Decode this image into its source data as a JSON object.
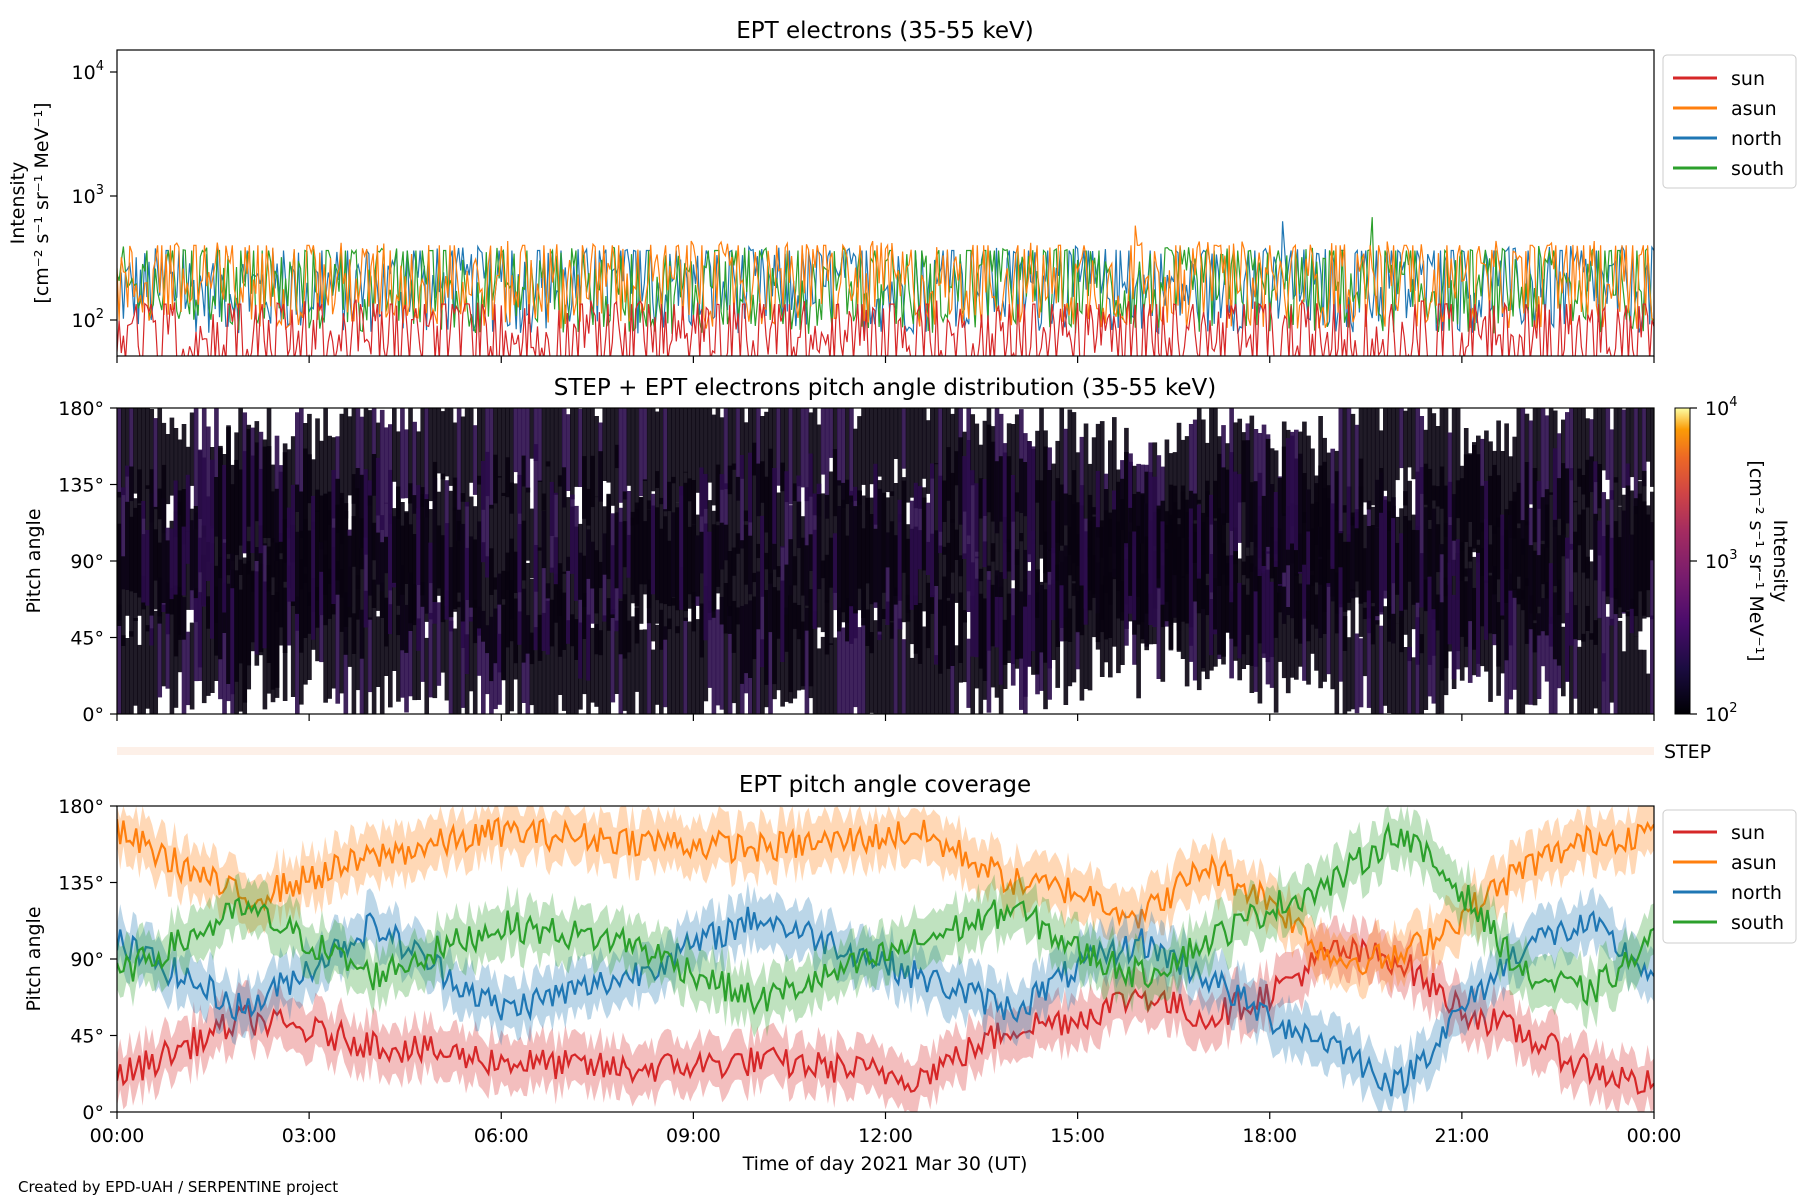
{
  "credit": "Created by EPD-UAH / SERPENTINE project",
  "colors": {
    "sun": "#d62728",
    "asun": "#ff7f0e",
    "north": "#1f77b4",
    "south": "#2ca02c",
    "step_band": "#fdf0e8"
  },
  "chart_data": [
    {
      "type": "line",
      "title": "EPT electrons (35-55 keV)",
      "ylabel_line1": "Intensity",
      "ylabel_line2": "[cm⁻² s⁻¹ sr⁻¹ MeV⁻¹]",
      "yscale": "log",
      "ylim": [
        55,
        15000
      ],
      "yticks": [
        {
          "base": "10",
          "exp": "2",
          "value": 100
        },
        {
          "base": "10",
          "exp": "3",
          "value": 1000
        },
        {
          "base": "10",
          "exp": "4",
          "value": 10000
        }
      ],
      "legend_position": "outside-right-top",
      "series": [
        {
          "name": "sun",
          "color": "#d62728",
          "typical": 75,
          "spread": 0.35
        },
        {
          "name": "asun",
          "color": "#ff7f0e",
          "typical": 220,
          "spread": 0.35
        },
        {
          "name": "north",
          "color": "#1f77b4",
          "typical": 200,
          "spread": 0.35
        },
        {
          "name": "south",
          "color": "#2ca02c",
          "typical": 200,
          "spread": 0.35
        }
      ],
      "notable_peaks": [
        {
          "series": "south",
          "hour": 19.6,
          "value": 700
        },
        {
          "series": "north",
          "hour": 18.2,
          "value": 650
        },
        {
          "series": "asun",
          "hour": 15.9,
          "value": 600
        }
      ]
    },
    {
      "type": "heatmap",
      "title": "STEP + EPT electrons pitch angle distribution (35-55 keV)",
      "ylabel": "Pitch angle",
      "ylim": [
        0,
        180
      ],
      "yticks": [
        "0°",
        "45°",
        "90°",
        "135°",
        "180°"
      ],
      "colorbar": {
        "label_line1": "Intensity",
        "label_line2": "[cm⁻² s⁻¹ sr⁻¹ MeV⁻¹]",
        "scale": "log",
        "range": [
          100,
          10000
        ],
        "ticks": [
          {
            "base": "10",
            "exp": "2"
          },
          {
            "base": "10",
            "exp": "3"
          },
          {
            "base": "10",
            "exp": "4"
          }
        ],
        "colormap": "inferno"
      },
      "typical_intensity": 150
    },
    {
      "type": "band",
      "label": "STEP",
      "note": "empty STEP coverage strip"
    },
    {
      "type": "line",
      "title": "EPT pitch angle coverage",
      "ylabel": "Pitch angle",
      "ylim": [
        0,
        180
      ],
      "yticks": [
        "0°",
        "45°",
        "90°",
        "135°",
        "180°"
      ],
      "xlabel": "Time of day 2021 Mar 30 (UT)",
      "xticks": [
        "00:00",
        "03:00",
        "06:00",
        "09:00",
        "12:00",
        "15:00",
        "18:00",
        "21:00",
        "00:00"
      ],
      "xlim_hours": [
        0,
        24
      ],
      "legend_position": "outside-right-top",
      "series": [
        {
          "name": "sun",
          "color": "#d62728",
          "hours": [
            0,
            2,
            4,
            6,
            8,
            10,
            11.5,
            12.5,
            14,
            15,
            16,
            17,
            18,
            19,
            20,
            21,
            22,
            23,
            24
          ],
          "values": [
            20,
            55,
            40,
            30,
            25,
            30,
            25,
            20,
            50,
            55,
            70,
            55,
            70,
            95,
            90,
            60,
            45,
            25,
            15
          ]
        },
        {
          "name": "asun",
          "color": "#ff7f0e",
          "hours": [
            0,
            2,
            4,
            6,
            8,
            10,
            11.5,
            12.5,
            14,
            15,
            16,
            17,
            18,
            19,
            20,
            21,
            22,
            23,
            24
          ],
          "values": [
            165,
            125,
            150,
            165,
            160,
            155,
            160,
            165,
            135,
            130,
            115,
            145,
            125,
            90,
            90,
            115,
            145,
            160,
            165
          ]
        },
        {
          "name": "north",
          "color": "#1f77b4",
          "hours": [
            0,
            2,
            4,
            6,
            8,
            10,
            11.5,
            12.5,
            14,
            15,
            16,
            17,
            18,
            19,
            20,
            21,
            22,
            23,
            24
          ],
          "values": [
            100,
            60,
            110,
            60,
            80,
            115,
            95,
            80,
            60,
            85,
            100,
            80,
            55,
            40,
            15,
            60,
            100,
            110,
            80
          ]
        },
        {
          "name": "south",
          "color": "#2ca02c",
          "hours": [
            0,
            2,
            4,
            6,
            8,
            10,
            11.5,
            12.5,
            14,
            15,
            16,
            17,
            18,
            19,
            20,
            21,
            22,
            23,
            24
          ],
          "values": [
            80,
            120,
            80,
            110,
            100,
            65,
            85,
            100,
            120,
            95,
            80,
            100,
            120,
            135,
            165,
            130,
            80,
            70,
            100
          ]
        }
      ]
    }
  ]
}
